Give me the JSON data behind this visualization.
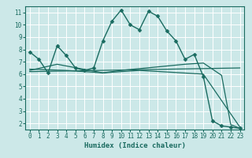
{
  "title": "",
  "xlabel": "Humidex (Indice chaleur)",
  "bg_color": "#cce8e8",
  "plot_bg_color": "#cce8e8",
  "grid_color": "#ffffff",
  "line_color": "#1a6b60",
  "xlim": [
    -0.5,
    23.5
  ],
  "ylim": [
    1.5,
    11.5
  ],
  "xticks": [
    0,
    1,
    2,
    3,
    4,
    5,
    6,
    7,
    8,
    9,
    10,
    11,
    12,
    13,
    14,
    15,
    16,
    17,
    18,
    19,
    20,
    21,
    22,
    23
  ],
  "yticks": [
    2,
    3,
    4,
    5,
    6,
    7,
    8,
    9,
    10,
    11
  ],
  "series": [
    {
      "x": [
        0,
        1,
        2,
        3,
        4,
        5,
        6,
        7,
        8,
        9,
        10,
        11,
        12,
        13,
        14,
        15,
        16,
        17,
        18,
        19,
        20,
        21,
        22,
        23
      ],
      "y": [
        7.8,
        7.2,
        6.1,
        8.3,
        7.5,
        6.5,
        6.3,
        6.5,
        8.7,
        10.3,
        11.2,
        10.0,
        9.6,
        11.1,
        10.7,
        9.5,
        8.7,
        7.2,
        7.6,
        5.8,
        2.2,
        1.8,
        1.7,
        1.6
      ],
      "marker": "D",
      "markersize": 2.5,
      "linewidth": 1.0
    },
    {
      "x": [
        0,
        3,
        8,
        10,
        17,
        19,
        21,
        22,
        23
      ],
      "y": [
        6.3,
        6.8,
        6.1,
        6.3,
        6.8,
        6.9,
        5.9,
        1.9,
        1.6
      ],
      "marker": null,
      "markersize": 0,
      "linewidth": 0.9
    },
    {
      "x": [
        0,
        23
      ],
      "y": [
        6.2,
        6.5
      ],
      "marker": null,
      "markersize": 0,
      "linewidth": 0.9
    },
    {
      "x": [
        0,
        4,
        8,
        12,
        19,
        23
      ],
      "y": [
        6.4,
        6.3,
        6.1,
        6.3,
        6.0,
        1.7
      ],
      "marker": null,
      "markersize": 0,
      "linewidth": 0.9
    }
  ]
}
